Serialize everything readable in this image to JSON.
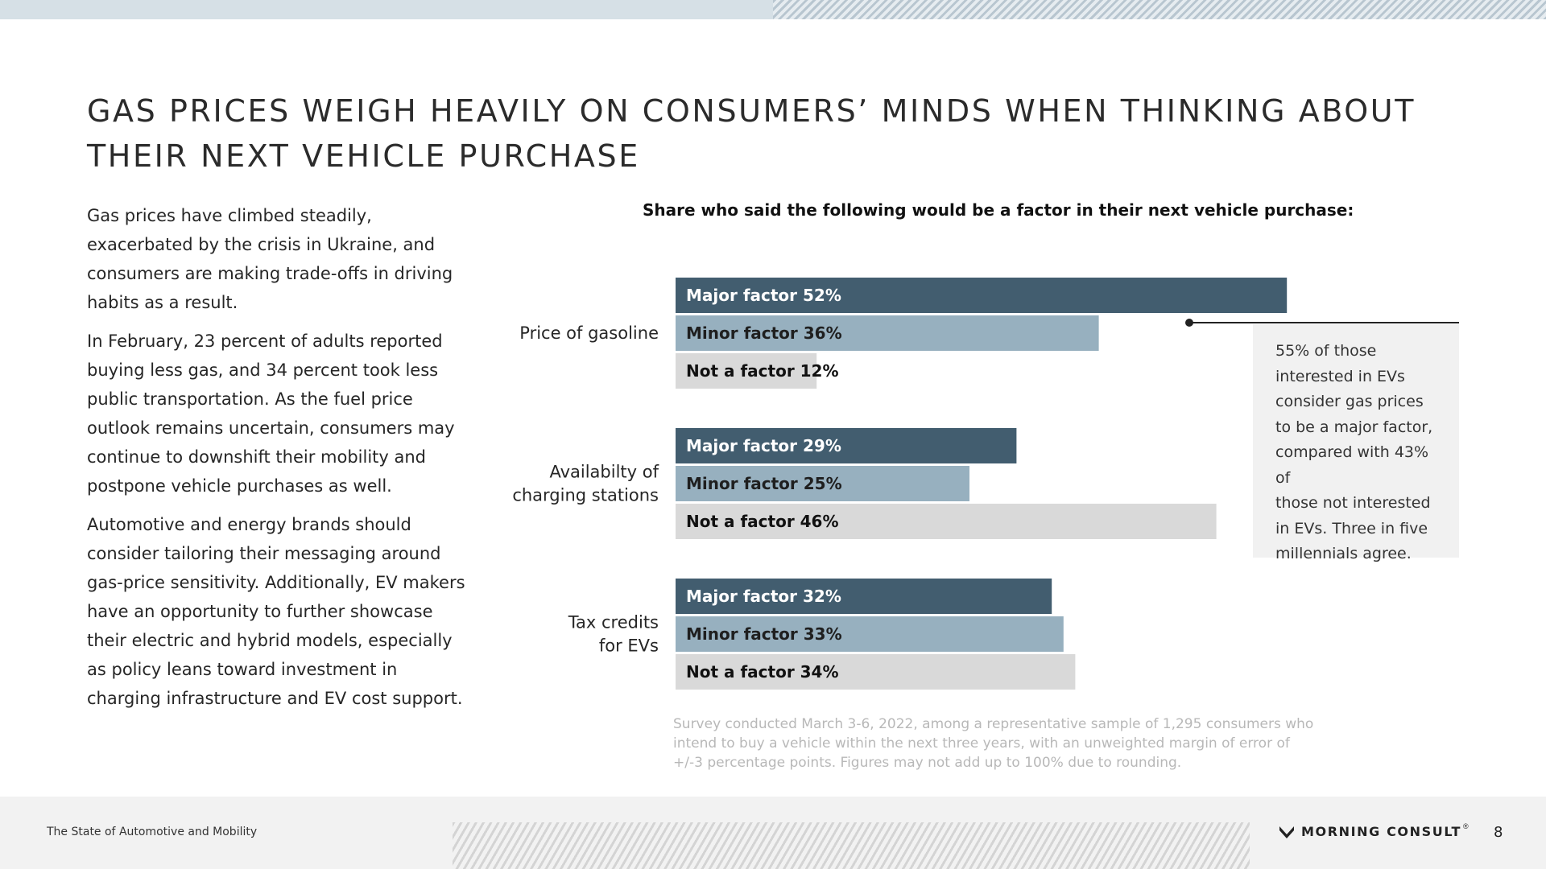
{
  "slide": {
    "title": "GAS PRICES WEIGH HEAVILY ON CONSUMERS’ MINDS WHEN THINKING ABOUT THEIR NEXT VEHICLE PURCHASE",
    "paragraphs": [
      "Gas prices have climbed steadily, exacerbated by the crisis in Ukraine, and consumers are making trade-offs in driving habits as a result.",
      "In February, 23 percent of adults reported buying less gas, and 34 percent took less public transportation. As the fuel price outlook remains uncertain, consumers may continue to downshift their mobility and postpone vehicle purchases as well.",
      "Automotive and energy brands should consider tailoring their messaging around gas-price sensitivity. Additionally, EV makers have an opportunity to further showcase their electric and hybrid models, especially as policy leans toward investment in charging infrastructure and EV cost support."
    ],
    "callout_lines": [
      "55% of those",
      "interested in EVs",
      "consider gas prices",
      "to be a major factor,",
      "compared with 43% of",
      "those not interested",
      "in EVs. Three in five",
      "millennials agree."
    ],
    "note": "Survey conducted March 3-6, 2022, among a representative sample of 1,295 consumers who intend to buy a vehicle within the next three years, with an unweighted margin of error of +/-3 percentage points. Figures may not add up to 100% due to rounding.",
    "footer_left": "The State of Automotive and Mobility",
    "brand": "MORNING CONSULT",
    "brand_mark": "®",
    "page_number": "8"
  },
  "chart_data": {
    "type": "bar",
    "orientation": "horizontal",
    "title": "Share who said the following would be a factor in their next vehicle purchase:",
    "categories": [
      [
        "Price of gasoline"
      ],
      [
        "Availabilty of",
        "charging stations"
      ],
      [
        "Tax credits",
        "for EVs"
      ]
    ],
    "series": [
      {
        "name": "Major factor",
        "values": [
          52,
          29,
          32
        ],
        "color": "#425d6f",
        "text_color": "#ffffff"
      },
      {
        "name": "Minor factor",
        "values": [
          36,
          25,
          33
        ],
        "color": "#97b0bf",
        "text_color": "#1f1f1f"
      },
      {
        "name": "Not a factor",
        "values": [
          12,
          46,
          34
        ],
        "color": "#d9d9d9",
        "text_color": "#111111"
      }
    ],
    "xlim": [
      0,
      100
    ],
    "grid": false,
    "value_suffix": "%"
  }
}
